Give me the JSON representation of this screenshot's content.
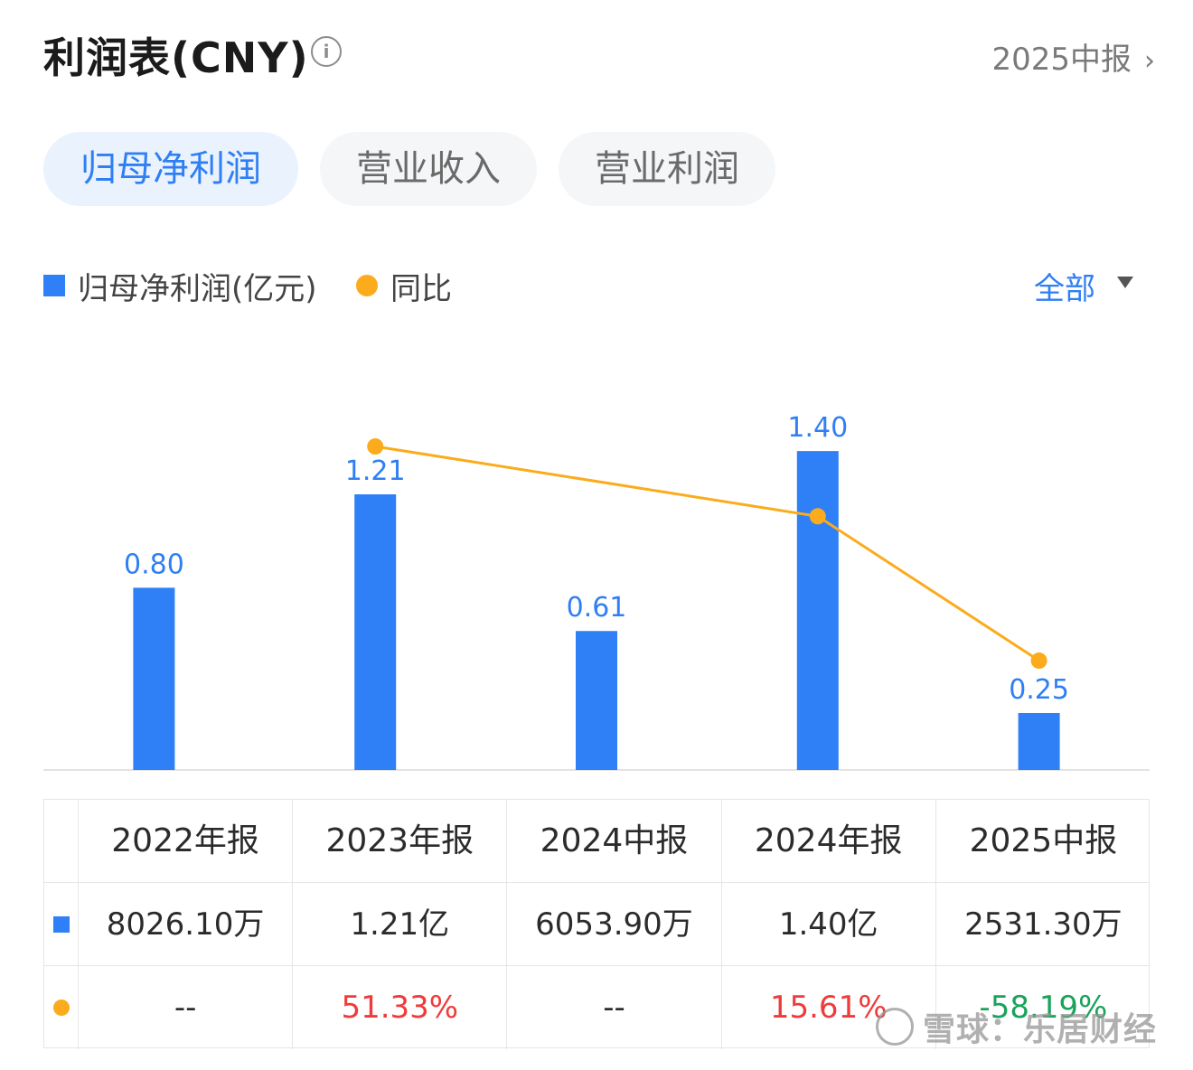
{
  "header": {
    "title": "利润表(CNY)",
    "info_icon": "info-icon",
    "period_link": "2025中报"
  },
  "tabs": [
    {
      "label": "归母净利润",
      "active": true
    },
    {
      "label": "营业收入",
      "active": false
    },
    {
      "label": "营业利润",
      "active": false
    }
  ],
  "legend": {
    "series1": "归母净利润(亿元)",
    "series2": "同比",
    "filter": "全部"
  },
  "colors": {
    "bar": "#2f80f6",
    "line": "#fbab1b",
    "accent": "#2f7ff4",
    "positive": "#ef3b3b",
    "negative": "#1aa35a"
  },
  "chart_data": {
    "type": "bar",
    "categories": [
      "2022年报",
      "2023年报",
      "2024中报",
      "2024年报",
      "2025中报"
    ],
    "series": [
      {
        "name": "归母净利润(亿元)",
        "type": "bar",
        "values": [
          0.8,
          1.21,
          0.61,
          1.4,
          0.25
        ],
        "labels": [
          "0.80",
          "1.21",
          "0.61",
          "1.40",
          "0.25"
        ]
      },
      {
        "name": "同比",
        "type": "line",
        "values": [
          null,
          51.33,
          null,
          15.61,
          -58.19
        ]
      }
    ],
    "ylim": [
      0,
      1.6
    ]
  },
  "table": {
    "headers": [
      "2022年报",
      "2023年报",
      "2024中报",
      "2024年报",
      "2025中报"
    ],
    "row_values": [
      "8026.10万",
      "1.21亿",
      "6053.90万",
      "1.40亿",
      "2531.30万"
    ],
    "row_yoy": [
      "--",
      "51.33%",
      "--",
      "15.61%",
      "-58.19%"
    ]
  },
  "watermark": "雪球：乐居财经"
}
